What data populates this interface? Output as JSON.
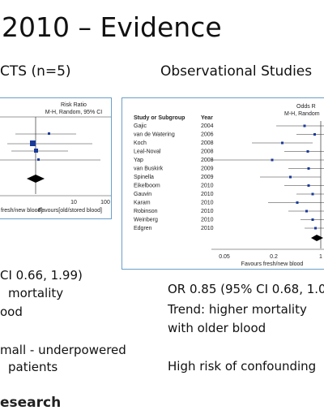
{
  "title": "2010 – Evidence",
  "left": {
    "heading": "CTS (n=5)",
    "plot": {
      "header1": "Risk Ratio",
      "header2": "M-H, Random, 95% CI",
      "ticks": [
        "10",
        "100"
      ],
      "favours_left": "fresh/new blood]",
      "favours_right": "Favours[old/stored blood]"
    },
    "bullets": [
      "CI 0.66, 1.99)",
      "mortality",
      "ood",
      "mall - underpowered",
      "patients"
    ]
  },
  "right": {
    "heading": "Observational Studies",
    "plot": {
      "col_study": "Study or Subgroup",
      "col_year": "Year",
      "header1": "Odds R",
      "header2": "M-H, Random",
      "studies": [
        [
          "Gajic",
          "2004"
        ],
        [
          "van de Watering",
          "2006"
        ],
        [
          "Koch",
          "2008"
        ],
        [
          "Leal-Noval",
          "2008"
        ],
        [
          "Yap",
          "2008"
        ],
        [
          "van Buskirk",
          "2009"
        ],
        [
          "Spinella",
          "2009"
        ],
        [
          "Eikelboom",
          "2010"
        ],
        [
          "Gauvin",
          "2010"
        ],
        [
          "Karam",
          "2010"
        ],
        [
          "Robinson",
          "2010"
        ],
        [
          "Weinberg",
          "2010"
        ],
        [
          "Edgren",
          "2010"
        ]
      ],
      "ticks": [
        "0.05",
        "0.2",
        "1"
      ],
      "favours": "Favours fresh/new blood"
    },
    "bullets": [
      "OR 0.85 (95% CI 0.68, 1.0",
      "Trend: higher mortality",
      "with older blood",
      "High risk of confounding"
    ]
  },
  "logo": "esearch"
}
